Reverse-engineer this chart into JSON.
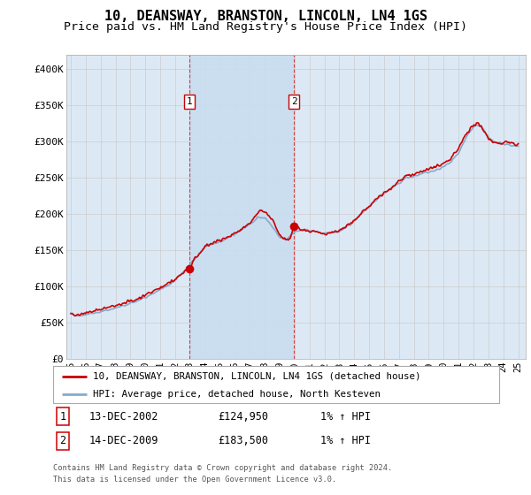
{
  "title": "10, DEANSWAY, BRANSTON, LINCOLN, LN4 1GS",
  "subtitle": "Price paid vs. HM Land Registry's House Price Index (HPI)",
  "title_fontsize": 11,
  "subtitle_fontsize": 9.5,
  "background_color": "#ffffff",
  "plot_bg_color": "#dce9f5",
  "shade_color": "#c8ddf0",
  "grid_color": "#cccccc",
  "ylabel_values": [
    "£0",
    "£50K",
    "£100K",
    "£150K",
    "£200K",
    "£250K",
    "£300K",
    "£350K",
    "£400K"
  ],
  "ylim": [
    0,
    420000
  ],
  "xlim_start": 1994.7,
  "xlim_end": 2025.5,
  "purchase_dates": [
    2002.96,
    2009.96
  ],
  "purchase_prices": [
    124950,
    183500
  ],
  "purchase_labels": [
    "1",
    "2"
  ],
  "legend_label_red": "10, DEANSWAY, BRANSTON, LINCOLN, LN4 1GS (detached house)",
  "legend_label_blue": "HPI: Average price, detached house, North Kesteven",
  "annotation_1_date": "13-DEC-2002",
  "annotation_1_price": "£124,950",
  "annotation_1_hpi": "1% ↑ HPI",
  "annotation_2_date": "14-DEC-2009",
  "annotation_2_price": "£183,500",
  "annotation_2_hpi": "1% ↑ HPI",
  "footer": "Contains HM Land Registry data © Crown copyright and database right 2024.\nThis data is licensed under the Open Government Licence v3.0.",
  "red_color": "#cc0000",
  "blue_color": "#88aacc",
  "xtick_labels": [
    "95",
    "96",
    "97",
    "98",
    "99",
    "00",
    "01",
    "02",
    "03",
    "04",
    "05",
    "06",
    "07",
    "08",
    "09",
    "10",
    "11",
    "12",
    "13",
    "14",
    "15",
    "16",
    "17",
    "18",
    "19",
    "20",
    "21",
    "22",
    "23",
    "24",
    "25"
  ]
}
